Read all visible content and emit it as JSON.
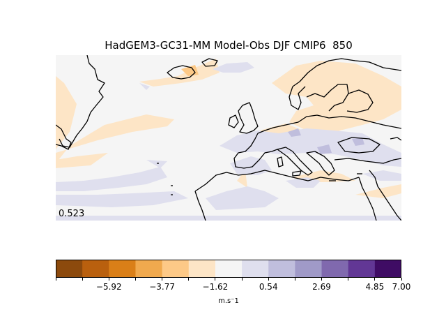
{
  "title": "HadGEM3-GC31-MM Model-Obs DJF CMIP6  850",
  "stat_value": "0.523",
  "colorbar": {
    "colors": [
      "#8c4a0d",
      "#b9600e",
      "#da7f18",
      "#f0a94e",
      "#fdc987",
      "#fde5c6",
      "#f5f5f5",
      "#dfdfee",
      "#c0bedd",
      "#a09ac8",
      "#8069ae",
      "#623795",
      "#3f0c64"
    ],
    "tick_labels": [
      "−5.92",
      "−3.77",
      "−1.62",
      "0.54",
      "2.69",
      "4.85",
      "7.00"
    ],
    "units": "m.s⁻1"
  },
  "map": {
    "background": "#f5f5f5",
    "coastline_color": "#000000"
  }
}
